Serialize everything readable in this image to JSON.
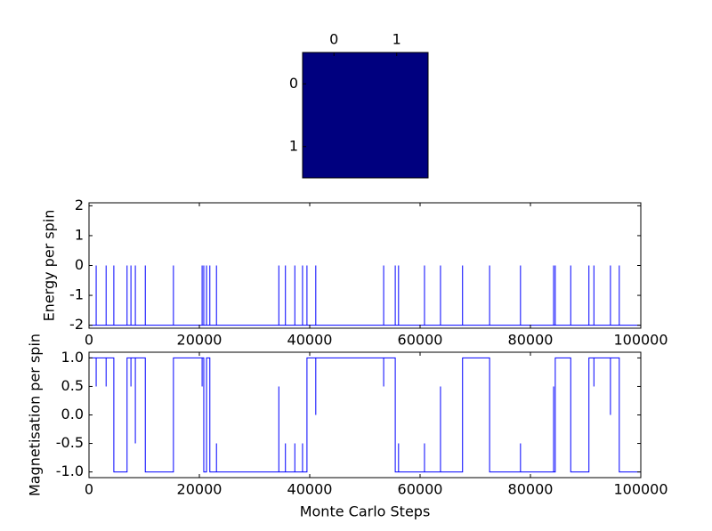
{
  "chart_data": [
    {
      "type": "heatmap",
      "values": [
        [
          -1,
          -1
        ],
        [
          -1,
          -1
        ]
      ],
      "color": "#00007f",
      "xlim": [
        -0.5,
        1.5
      ],
      "ylim": [
        1.5,
        -0.5
      ],
      "xticks": [
        0,
        1
      ],
      "yticks": [
        0,
        1
      ]
    },
    {
      "type": "line",
      "ylabel": "Energy per spin",
      "color": "#0000ff",
      "xlim": [
        0,
        100000
      ],
      "ylim": [
        -2.1,
        2.1
      ],
      "xticks": [
        0,
        20000,
        40000,
        60000,
        80000,
        100000
      ],
      "yticks": [
        -2,
        -1,
        0,
        1,
        2
      ],
      "x": [
        0,
        1300,
        1300,
        1300,
        3100,
        3100,
        3100,
        4500,
        4500,
        4500,
        6900,
        6900,
        6900,
        7600,
        7600,
        7600,
        8400,
        8400,
        8400,
        10200,
        10200,
        10200,
        15300,
        15300,
        15300,
        20500,
        20500,
        20500,
        20800,
        20800,
        20800,
        21300,
        21300,
        21300,
        21900,
        21900,
        21900,
        23100,
        23100,
        23100,
        34400,
        34400,
        34400,
        35600,
        35600,
        35600,
        37300,
        37300,
        37300,
        38700,
        38700,
        38700,
        39500,
        39500,
        39500,
        41100,
        41100,
        41100,
        53400,
        53400,
        53400,
        55500,
        55500,
        55500,
        56100,
        56100,
        56100,
        60800,
        60800,
        60800,
        63700,
        63700,
        63700,
        67700,
        67700,
        67700,
        72600,
        72600,
        72600,
        78200,
        78200,
        78200,
        84200,
        84200,
        84200,
        84500,
        84500,
        84500,
        87300,
        87300,
        87300,
        90600,
        90600,
        90600,
        91500,
        91500,
        91500,
        94500,
        94500,
        94500,
        96100,
        96100,
        96100,
        100000
      ],
      "values": [
        -2,
        -2,
        0,
        -2,
        -2,
        0,
        -2,
        -2,
        0,
        -2,
        -2,
        0,
        -2,
        -2,
        0,
        -2,
        -2,
        0,
        -2,
        -2,
        0,
        -2,
        -2,
        0,
        -2,
        -2,
        0,
        -2,
        -2,
        0,
        -2,
        -2,
        0,
        -2,
        -2,
        0,
        -2,
        -2,
        0,
        -2,
        -2,
        0,
        -2,
        -2,
        0,
        -2,
        -2,
        0,
        -2,
        -2,
        0,
        -2,
        -2,
        0,
        -2,
        -2,
        0,
        -2,
        -2,
        0,
        -2,
        -2,
        0,
        -2,
        -2,
        0,
        -2,
        -2,
        0,
        -2,
        -2,
        0,
        -2,
        -2,
        0,
        -2,
        -2,
        0,
        -2,
        -2,
        0,
        -2,
        -2,
        0,
        -2,
        -2,
        0,
        -2,
        -2,
        0,
        -2,
        -2,
        0,
        -2,
        -2,
        0,
        -2,
        -2,
        0,
        -2,
        -2,
        0,
        -2,
        -2
      ]
    },
    {
      "type": "line",
      "ylabel": "Magnetisation per spin",
      "xlabel": "Monte Carlo Steps",
      "color": "#0000ff",
      "xlim": [
        0,
        100000
      ],
      "ylim": [
        -1.1,
        1.1
      ],
      "xticks": [
        0,
        20000,
        40000,
        60000,
        80000,
        100000
      ],
      "yticks": [
        -1.0,
        -0.5,
        0.0,
        0.5,
        1.0
      ],
      "x": [
        0,
        1300,
        1300,
        1300,
        3100,
        3100,
        3100,
        4500,
        4500,
        6900,
        6900,
        7600,
        7600,
        7600,
        8400,
        8400,
        8400,
        10200,
        10200,
        15300,
        15300,
        20500,
        20500,
        20500,
        20800,
        20800,
        21300,
        21300,
        21900,
        21900,
        23100,
        23100,
        23100,
        34400,
        34400,
        34400,
        35600,
        35600,
        35600,
        37300,
        37300,
        37300,
        38700,
        38700,
        38700,
        39500,
        39500,
        41100,
        41100,
        41100,
        53400,
        53400,
        53400,
        55500,
        55500,
        56100,
        56100,
        56100,
        60800,
        60800,
        60800,
        63700,
        63700,
        63700,
        67700,
        67700,
        72600,
        72600,
        78200,
        78200,
        78200,
        84200,
        84200,
        84200,
        84500,
        84500,
        87300,
        87300,
        90600,
        90600,
        91500,
        91500,
        91500,
        94500,
        94500,
        94500,
        96100,
        96100,
        100000
      ],
      "values": [
        1,
        1,
        0.5,
        1,
        1,
        0.5,
        1,
        1,
        -1,
        -1,
        1,
        1,
        0.5,
        1,
        1,
        -0.5,
        1,
        1,
        -1,
        -1,
        1,
        1,
        0.5,
        1,
        1,
        -1,
        -1,
        1,
        1,
        -1,
        -1,
        -0.5,
        -1,
        -1,
        0.5,
        -1,
        -1,
        -0.5,
        -1,
        -1,
        -0.5,
        -1,
        -1,
        -0.5,
        -1,
        -1,
        1,
        1,
        0,
        1,
        1,
        0.5,
        1,
        1,
        -1,
        -1,
        -0.5,
        -1,
        -1,
        -0.5,
        -1,
        -1,
        0.5,
        -1,
        -1,
        1,
        1,
        -1,
        -1,
        -0.5,
        -1,
        -1,
        0.5,
        -1,
        -1,
        1,
        1,
        -1,
        -1,
        1,
        1,
        0.5,
        1,
        1,
        0,
        1,
        1,
        -1,
        -1
      ]
    }
  ]
}
